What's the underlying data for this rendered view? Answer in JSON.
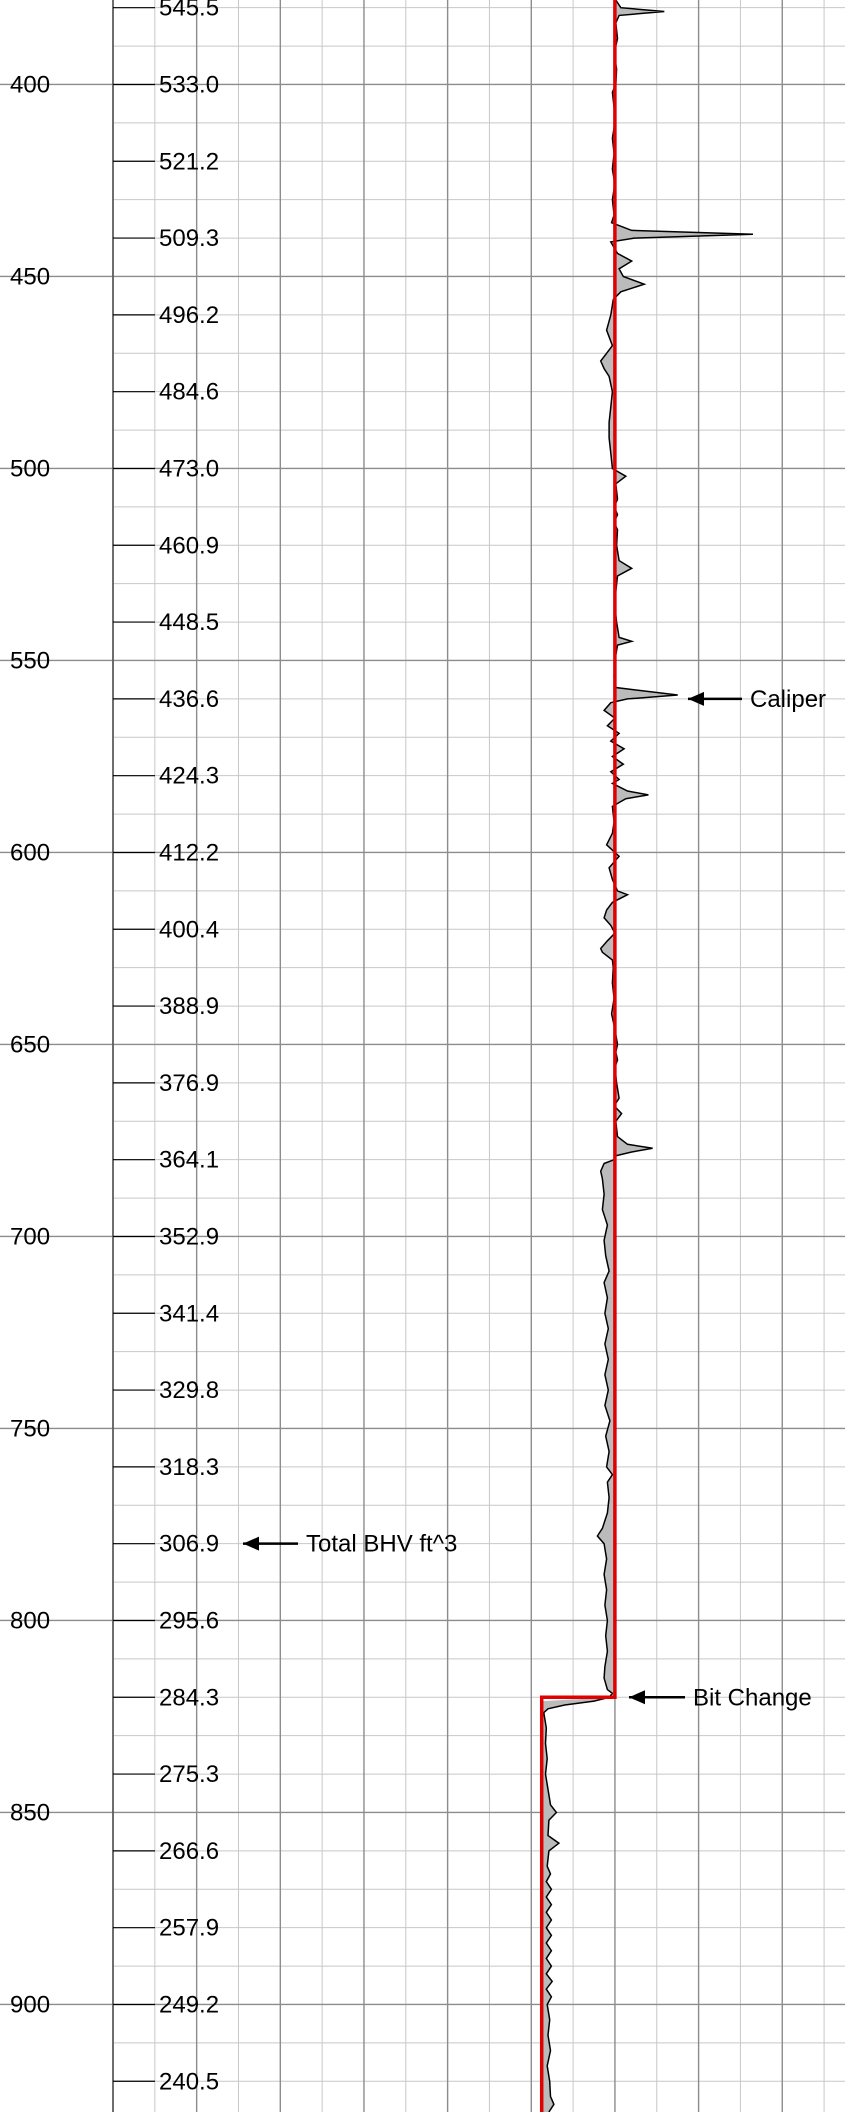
{
  "chart_data": {
    "type": "line",
    "title": "",
    "xlabel": "",
    "ylabel": "",
    "depth_range": [
      378,
      928
    ],
    "depth_ticks": [
      400,
      450,
      500,
      550,
      600,
      650,
      700,
      750,
      800,
      850,
      900
    ],
    "depth_tick_labels": [
      "400",
      "450",
      "500",
      "550",
      "600",
      "650",
      "700",
      "750",
      "800",
      "850",
      "900"
    ],
    "grid": true,
    "total_bhv": {
      "depths": [
        380,
        400,
        420,
        440,
        460,
        480,
        500,
        520,
        540,
        560,
        580,
        600,
        620,
        640,
        660,
        680,
        700,
        720,
        740,
        760,
        780,
        800,
        820,
        840,
        860,
        880,
        900,
        920
      ],
      "labels": [
        "545.5",
        "533.0",
        "521.2",
        "509.3",
        "496.2",
        "484.6",
        "473.0",
        "460.9",
        "448.5",
        "436.6",
        "424.3",
        "412.2",
        "400.4",
        "388.9",
        "376.9",
        "364.1",
        "352.9",
        "341.4",
        "329.8",
        "318.3",
        "306.9",
        "295.6",
        "284.3",
        "275.3",
        "266.6",
        "257.9",
        "249.2",
        "240.5"
      ]
    },
    "bit_size": {
      "name": "",
      "color": "#e00000",
      "points": [
        [
          378,
          8.75
        ],
        [
          820,
          8.75
        ],
        [
          820,
          7.875
        ],
        [
          928,
          7.875
        ]
      ]
    },
    "caliper": {
      "name": "Caliper",
      "color": "#000000",
      "fill": "#bbbbbb",
      "points": [
        [
          378,
          8.76
        ],
        [
          380,
          8.82
        ],
        [
          381,
          9.34
        ],
        [
          382,
          8.8
        ],
        [
          384,
          8.76
        ],
        [
          388,
          8.78
        ],
        [
          392,
          8.74
        ],
        [
          396,
          8.77
        ],
        [
          400,
          8.76
        ],
        [
          402,
          8.72
        ],
        [
          406,
          8.74
        ],
        [
          410,
          8.75
        ],
        [
          414,
          8.72
        ],
        [
          418,
          8.74
        ],
        [
          422,
          8.72
        ],
        [
          426,
          8.75
        ],
        [
          430,
          8.72
        ],
        [
          434,
          8.74
        ],
        [
          436,
          8.71
        ],
        [
          438,
          8.95
        ],
        [
          439,
          10.4
        ],
        [
          440,
          8.98
        ],
        [
          441,
          8.7
        ],
        [
          444,
          8.78
        ],
        [
          446,
          8.95
        ],
        [
          448,
          8.8
        ],
        [
          450,
          8.85
        ],
        [
          452,
          9.1
        ],
        [
          454,
          8.82
        ],
        [
          456,
          8.73
        ],
        [
          460,
          8.7
        ],
        [
          464,
          8.65
        ],
        [
          468,
          8.72
        ],
        [
          470,
          8.65
        ],
        [
          472,
          8.58
        ],
        [
          474,
          8.62
        ],
        [
          476,
          8.68
        ],
        [
          480,
          8.72
        ],
        [
          484,
          8.7
        ],
        [
          488,
          8.68
        ],
        [
          492,
          8.68
        ],
        [
          496,
          8.7
        ],
        [
          500,
          8.72
        ],
        [
          502,
          8.88
        ],
        [
          504,
          8.76
        ],
        [
          508,
          8.78
        ],
        [
          510,
          8.74
        ],
        [
          512,
          8.78
        ],
        [
          514,
          8.74
        ],
        [
          516,
          8.78
        ],
        [
          520,
          8.77
        ],
        [
          524,
          8.8
        ],
        [
          526,
          8.95
        ],
        [
          528,
          8.78
        ],
        [
          532,
          8.76
        ],
        [
          536,
          8.75
        ],
        [
          540,
          8.77
        ],
        [
          544,
          8.8
        ],
        [
          545,
          8.95
        ],
        [
          546,
          8.78
        ],
        [
          550,
          8.75
        ],
        [
          554,
          8.74
        ],
        [
          557,
          8.75
        ],
        [
          559,
          9.5
        ],
        [
          560,
          8.9
        ],
        [
          561,
          8.7
        ],
        [
          563,
          8.62
        ],
        [
          565,
          8.75
        ],
        [
          567,
          8.66
        ],
        [
          569,
          8.8
        ],
        [
          571,
          8.7
        ],
        [
          573,
          8.86
        ],
        [
          575,
          8.72
        ],
        [
          577,
          8.85
        ],
        [
          579,
          8.7
        ],
        [
          581,
          8.8
        ],
        [
          582,
          8.72
        ],
        [
          584,
          8.9
        ],
        [
          585,
          9.15
        ],
        [
          586,
          8.88
        ],
        [
          588,
          8.72
        ],
        [
          592,
          8.74
        ],
        [
          595,
          8.72
        ],
        [
          598,
          8.65
        ],
        [
          601,
          8.8
        ],
        [
          604,
          8.68
        ],
        [
          607,
          8.72
        ],
        [
          610,
          8.78
        ],
        [
          611,
          8.9
        ],
        [
          613,
          8.72
        ],
        [
          615,
          8.65
        ],
        [
          617,
          8.62
        ],
        [
          619,
          8.7
        ],
        [
          621,
          8.75
        ],
        [
          623,
          8.66
        ],
        [
          625,
          8.58
        ],
        [
          626,
          8.6
        ],
        [
          628,
          8.72
        ],
        [
          630,
          8.73
        ],
        [
          634,
          8.72
        ],
        [
          638,
          8.74
        ],
        [
          642,
          8.71
        ],
        [
          646,
          8.75
        ],
        [
          650,
          8.78
        ],
        [
          652,
          8.76
        ],
        [
          654,
          8.78
        ],
        [
          656,
          8.75
        ],
        [
          660,
          8.77
        ],
        [
          664,
          8.8
        ],
        [
          666,
          8.74
        ],
        [
          668,
          8.83
        ],
        [
          670,
          8.76
        ],
        [
          674,
          8.78
        ],
        [
          676,
          8.9
        ],
        [
          677,
          9.2
        ],
        [
          678,
          8.95
        ],
        [
          679,
          8.76
        ],
        [
          680,
          8.74
        ],
        [
          681,
          8.62
        ],
        [
          683,
          8.58
        ],
        [
          685,
          8.6
        ],
        [
          689,
          8.62
        ],
        [
          693,
          8.6
        ],
        [
          697,
          8.66
        ],
        [
          701,
          8.62
        ],
        [
          705,
          8.64
        ],
        [
          709,
          8.68
        ],
        [
          712,
          8.62
        ],
        [
          716,
          8.66
        ],
        [
          720,
          8.63
        ],
        [
          724,
          8.67
        ],
        [
          728,
          8.63
        ],
        [
          732,
          8.67
        ],
        [
          736,
          8.63
        ],
        [
          740,
          8.67
        ],
        [
          744,
          8.63
        ],
        [
          748,
          8.69
        ],
        [
          752,
          8.64
        ],
        [
          756,
          8.68
        ],
        [
          760,
          8.65
        ],
        [
          762,
          8.72
        ],
        [
          764,
          8.66
        ],
        [
          768,
          8.68
        ],
        [
          772,
          8.66
        ],
        [
          776,
          8.6
        ],
        [
          778,
          8.54
        ],
        [
          780,
          8.62
        ],
        [
          784,
          8.65
        ],
        [
          788,
          8.62
        ],
        [
          792,
          8.65
        ],
        [
          796,
          8.63
        ],
        [
          800,
          8.66
        ],
        [
          804,
          8.64
        ],
        [
          808,
          8.66
        ],
        [
          812,
          8.63
        ],
        [
          815,
          8.62
        ],
        [
          818,
          8.66
        ],
        [
          819,
          8.72
        ],
        [
          820,
          8.68
        ],
        [
          821,
          8.5
        ],
        [
          822,
          8.15
        ],
        [
          823,
          7.95
        ],
        [
          824,
          7.9
        ],
        [
          828,
          7.93
        ],
        [
          832,
          7.92
        ],
        [
          836,
          7.94
        ],
        [
          840,
          7.92
        ],
        [
          844,
          7.95
        ],
        [
          848,
          7.98
        ],
        [
          850,
          8.05
        ],
        [
          852,
          7.96
        ],
        [
          856,
          7.95
        ],
        [
          858,
          8.08
        ],
        [
          860,
          7.96
        ],
        [
          864,
          7.94
        ],
        [
          866,
          7.98
        ],
        [
          868,
          7.93
        ],
        [
          870,
          7.99
        ],
        [
          872,
          7.93
        ],
        [
          874,
          7.99
        ],
        [
          876,
          7.93
        ],
        [
          878,
          7.99
        ],
        [
          880,
          7.93
        ],
        [
          882,
          7.99
        ],
        [
          884,
          7.93
        ],
        [
          886,
          7.99
        ],
        [
          888,
          7.93
        ],
        [
          890,
          7.99
        ],
        [
          892,
          7.93
        ],
        [
          894,
          8.0
        ],
        [
          896,
          7.93
        ],
        [
          898,
          7.99
        ],
        [
          900,
          7.94
        ],
        [
          904,
          7.97
        ],
        [
          908,
          7.95
        ],
        [
          912,
          7.98
        ],
        [
          916,
          7.94
        ],
        [
          920,
          7.97
        ],
        [
          924,
          7.98
        ],
        [
          926,
          8.02
        ],
        [
          928,
          7.96
        ]
      ]
    },
    "x_axis": {
      "min": 2.75,
      "max": 11.5
    },
    "annotations": [
      {
        "text": "Caliper",
        "depth": 560
      },
      {
        "text": "Total BHV ft^3",
        "depth": 780
      },
      {
        "text": "Bit Change",
        "depth": 820
      }
    ]
  }
}
